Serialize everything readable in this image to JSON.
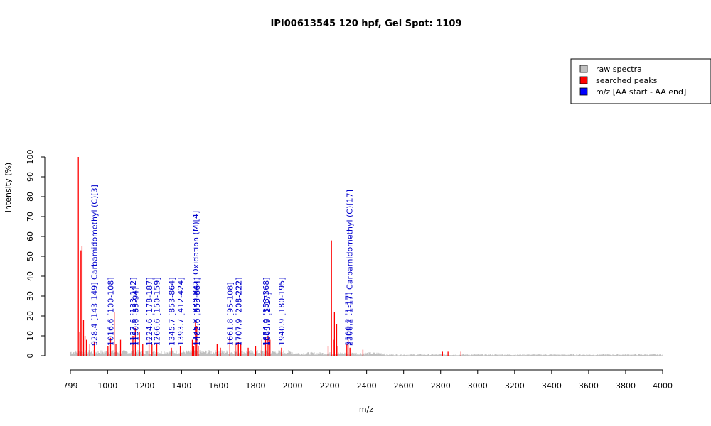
{
  "chart_data": {
    "type": "bar",
    "title": "IPI00613545  120 hpf, Gel Spot: 1109",
    "xlabel": "m/z",
    "ylabel": "intensity (%)",
    "xlim": [
      799,
      4000
    ],
    "ylim": [
      0,
      100
    ],
    "x_ticks": [
      799,
      1000,
      1200,
      1400,
      1600,
      1800,
      2000,
      2200,
      2400,
      2600,
      2800,
      3000,
      3200,
      3400,
      3600,
      3800,
      4000
    ],
    "y_ticks": [
      0,
      10,
      20,
      30,
      40,
      50,
      60,
      70,
      80,
      90,
      100
    ],
    "grid": false,
    "legend_position": "top-right",
    "legend": [
      {
        "label": "raw spectra",
        "color": "#c0c0c0"
      },
      {
        "label": "searched peaks",
        "color": "#ff0000"
      },
      {
        "label": "m/z [AA start - AA end]",
        "color": "#0000ff"
      }
    ],
    "colors": {
      "raw": "#c0c0c0",
      "peaks": "#ff0000",
      "labels": "#0000cc"
    },
    "series": [
      {
        "name": "searched peaks",
        "points": [
          [
            842,
            100
          ],
          [
            850,
            12
          ],
          [
            856,
            53
          ],
          [
            862,
            55
          ],
          [
            870,
            18
          ],
          [
            878,
            10
          ],
          [
            886,
            8
          ],
          [
            904,
            6
          ],
          [
            928,
            7
          ],
          [
            1002,
            5
          ],
          [
            1016,
            9
          ],
          [
            1036,
            22
          ],
          [
            1045,
            6
          ],
          [
            1070,
            8
          ],
          [
            1137,
            10
          ],
          [
            1150,
            14
          ],
          [
            1172,
            12
          ],
          [
            1190,
            6
          ],
          [
            1224,
            8
          ],
          [
            1240,
            6
          ],
          [
            1266,
            6
          ],
          [
            1345,
            4
          ],
          [
            1393,
            5
          ],
          [
            1458,
            8
          ],
          [
            1466,
            5
          ],
          [
            1475,
            18
          ],
          [
            1482,
            15
          ],
          [
            1490,
            5
          ],
          [
            1592,
            6
          ],
          [
            1610,
            4
          ],
          [
            1661,
            10
          ],
          [
            1690,
            6
          ],
          [
            1700,
            7
          ],
          [
            1707,
            7
          ],
          [
            1720,
            6
          ],
          [
            1760,
            4
          ],
          [
            1800,
            5
          ],
          [
            1834,
            8
          ],
          [
            1854,
            9
          ],
          [
            1867,
            10
          ],
          [
            1878,
            8
          ],
          [
            1940,
            4
          ],
          [
            2192,
            5
          ],
          [
            2210,
            58
          ],
          [
            2220,
            8
          ],
          [
            2226,
            22
          ],
          [
            2238,
            16
          ],
          [
            2245,
            5
          ],
          [
            2293,
            6
          ],
          [
            2300,
            8
          ],
          [
            2310,
            4
          ],
          [
            2380,
            3
          ],
          [
            2810,
            2
          ],
          [
            2840,
            2
          ],
          [
            2910,
            2
          ]
        ]
      }
    ],
    "annotations": [
      {
        "x": 928.4,
        "text": "928.4  [143-149] Carbamidomethyl (C)[3]"
      },
      {
        "x": 1016.6,
        "text": "1016.6  [100-108]"
      },
      {
        "x": 1137.6,
        "text": "1137.6  [133-142]"
      },
      {
        "x": 1150.6,
        "text": "1150.6  [85-94]"
      },
      {
        "x": 1224.6,
        "text": "1224.6  [178-187]"
      },
      {
        "x": 1266.6,
        "text": "1266.6  [150-159]"
      },
      {
        "x": 1345.7,
        "text": "1345.7  [853-864]"
      },
      {
        "x": 1393.7,
        "text": "1393.7  [412-424]"
      },
      {
        "x": 1475.8,
        "text": "1475.8  [830-841] Oxidation (M)[4]"
      },
      {
        "x": 1482.6,
        "text": "1482.6  [853-864]"
      },
      {
        "x": 1661.8,
        "text": "1661.8  [95-108]"
      },
      {
        "x": 1707.9,
        "text": "1707.9  [208-222]"
      },
      {
        "x": 1707.9,
        "text": "1707.9  [208-222]"
      },
      {
        "x": 1854.9,
        "text": "1854.9  [353-368]"
      },
      {
        "x": 1863.9,
        "text": "1863.9  [1-17]"
      },
      {
        "x": 1940.9,
        "text": "1940.9  [180-195]"
      },
      {
        "x": 2300.2,
        "text": "2300.2  [1-17]"
      },
      {
        "x": 2308.2,
        "text": "2308.2  [1-17] Carbamidomethyl (C)[17]"
      }
    ]
  }
}
